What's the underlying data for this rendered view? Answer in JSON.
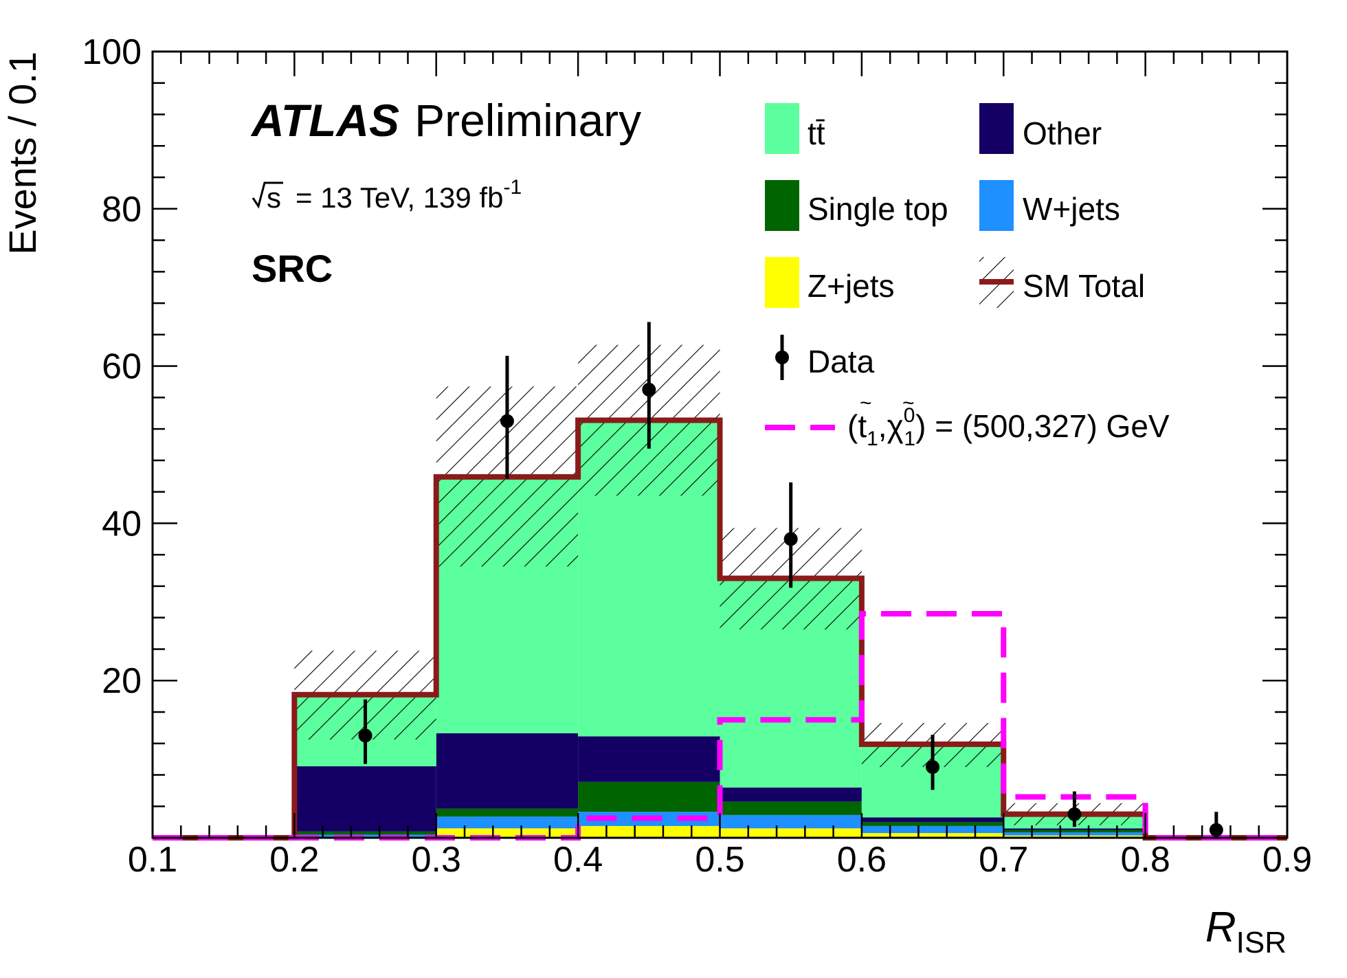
{
  "chart_data": {
    "type": "bar",
    "title": "",
    "bin_edges": [
      0.1,
      0.2,
      0.3,
      0.4,
      0.5,
      0.6,
      0.7,
      0.8,
      0.9
    ],
    "xlim": [
      0.1,
      0.9
    ],
    "ylim": [
      0,
      100
    ],
    "x_ticks": [
      "0.1",
      "0.2",
      "0.3",
      "0.4",
      "0.5",
      "0.6",
      "0.7",
      "0.8",
      "0.9"
    ],
    "y_ticks": [
      "20",
      "40",
      "60",
      "80",
      "100"
    ],
    "xlabel": "R",
    "xlabel_sub": "ISR",
    "ylabel": "Events / 0.1",
    "legend_position": "top-right",
    "grid": false,
    "annotations": {
      "experiment": "ATLAS",
      "status": "Preliminary",
      "energy_prefix": "s",
      "energy": "= 13 TeV, 139 fb",
      "lumi_exp": "-1",
      "region": "SRC"
    },
    "stack": [
      {
        "name": "Z+jets",
        "color": "#ffff00",
        "values": [
          0,
          0,
          1.2,
          1.5,
          1.2,
          0.6,
          0.3,
          0
        ]
      },
      {
        "name": "W+jets",
        "color": "#1e90ff",
        "values": [
          0,
          0.4,
          1.5,
          1.8,
          1.7,
          0.9,
          0.4,
          0
        ]
      },
      {
        "name": "Single top",
        "color": "#006400",
        "values": [
          0,
          0.4,
          1.0,
          3.8,
          1.7,
          0.5,
          0.3,
          0
        ]
      },
      {
        "name": "Other",
        "color": "#140064",
        "values": [
          0,
          8.3,
          9.6,
          5.8,
          1.8,
          0.6,
          0.2,
          0
        ]
      },
      {
        "name": "tt̄",
        "color": "#5cff9d",
        "values": [
          0,
          9.1,
          32.6,
          40.2,
          26.6,
          9.3,
          1.8,
          0
        ]
      }
    ],
    "sm_total": {
      "name": "SM Total",
      "color": "#8b1a1a",
      "values": [
        0,
        18.2,
        45.9,
        53.1,
        33.0,
        11.9,
        3.0,
        0
      ],
      "unc_low": [
        0,
        12.5,
        34.5,
        43.5,
        26.5,
        9.0,
        1.6,
        0
      ],
      "unc_high": [
        0,
        23.8,
        57.4,
        62.7,
        39.4,
        14.6,
        4.4,
        0
      ]
    },
    "data": {
      "name": "Data",
      "x": [
        0.25,
        0.35,
        0.45,
        0.55,
        0.65,
        0.75,
        0.85
      ],
      "y": [
        13,
        53,
        57,
        38,
        9,
        3,
        1
      ],
      "err_low": [
        3.6,
        7.3,
        7.5,
        6.2,
        2.9,
        1.6,
        0.9
      ],
      "err_high": [
        4.6,
        8.3,
        8.6,
        7.2,
        4.1,
        2.9,
        2.3
      ]
    },
    "signal": {
      "name": "(t̃₁,χ̃₁⁰) = (500,327) GeV",
      "label_prefix": "(t",
      "label_sub1": "1",
      "label_mid": ",χ",
      "label_sub2": "1",
      "label_sup2": "0",
      "label_suffix": ") = (500,327) GeV",
      "color": "#ff00ff",
      "values": [
        0,
        0,
        0,
        2.5,
        15.0,
        28.5,
        5.2,
        0
      ]
    },
    "legend_entries": {
      "ttbar": "tt̄",
      "other": "Other",
      "singletop": "Single top",
      "wjets": "W+jets",
      "zjets": "Z+jets",
      "smtotal": "SM Total",
      "data": "Data"
    }
  }
}
